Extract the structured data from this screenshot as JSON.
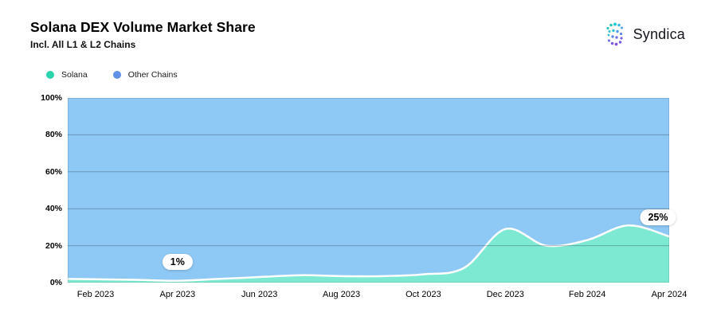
{
  "header": {
    "title": "Solana DEX Volume Market Share",
    "subtitle": "Incl. All L1 & L2 Chains",
    "brand": "Syndica"
  },
  "chart_data": {
    "type": "area",
    "stacked": true,
    "unit": "%",
    "ylim": [
      0,
      100
    ],
    "grid": "horizontal",
    "legend_position": "top-left",
    "x": [
      "Jan 2023",
      "Feb 2023",
      "Mar 2023",
      "Apr 2023",
      "May 2023",
      "Jun 2023",
      "Jul 2023",
      "Aug 2023",
      "Sep 2023",
      "Oct 2023",
      "Nov 2023",
      "Dec 2023",
      "Jan 2024",
      "Feb 2024",
      "Mar 2024",
      "Apr 2024"
    ],
    "series": [
      {
        "name": "Solana",
        "dot_color": "#2bd3ad",
        "area_color": "#7de9d2",
        "values": [
          2,
          1.8,
          1.5,
          1,
          2,
          3,
          4,
          3.5,
          3.5,
          4.5,
          8,
          29,
          20,
          23,
          31,
          25
        ]
      },
      {
        "name": "Other Chains",
        "dot_color": "#6090e8",
        "area_color": "#8ec8f4",
        "values": [
          98,
          98.2,
          98.5,
          99,
          98,
          97,
          96,
          96.5,
          96.5,
          95.5,
          92,
          71,
          80,
          77,
          69,
          75
        ]
      }
    ],
    "y_ticks": [
      "0%",
      "20%",
      "40%",
      "60%",
      "80%",
      "100%"
    ],
    "x_ticks": [
      "Feb 2023",
      "Apr 2023",
      "Jun 2023",
      "Aug 2023",
      "Oct 2023",
      "Dec 2023",
      "Feb 2024",
      "Apr 2024"
    ],
    "annotations": [
      {
        "text": "1%",
        "x": "Apr 2023",
        "value": 1,
        "dx": 0
      },
      {
        "text": "25%",
        "x": "Apr 2024",
        "value": 25,
        "dx": -14
      }
    ],
    "boundary_stroke_color": "#ffffff",
    "gridline_color": "rgba(35,55,75,0.35)"
  }
}
